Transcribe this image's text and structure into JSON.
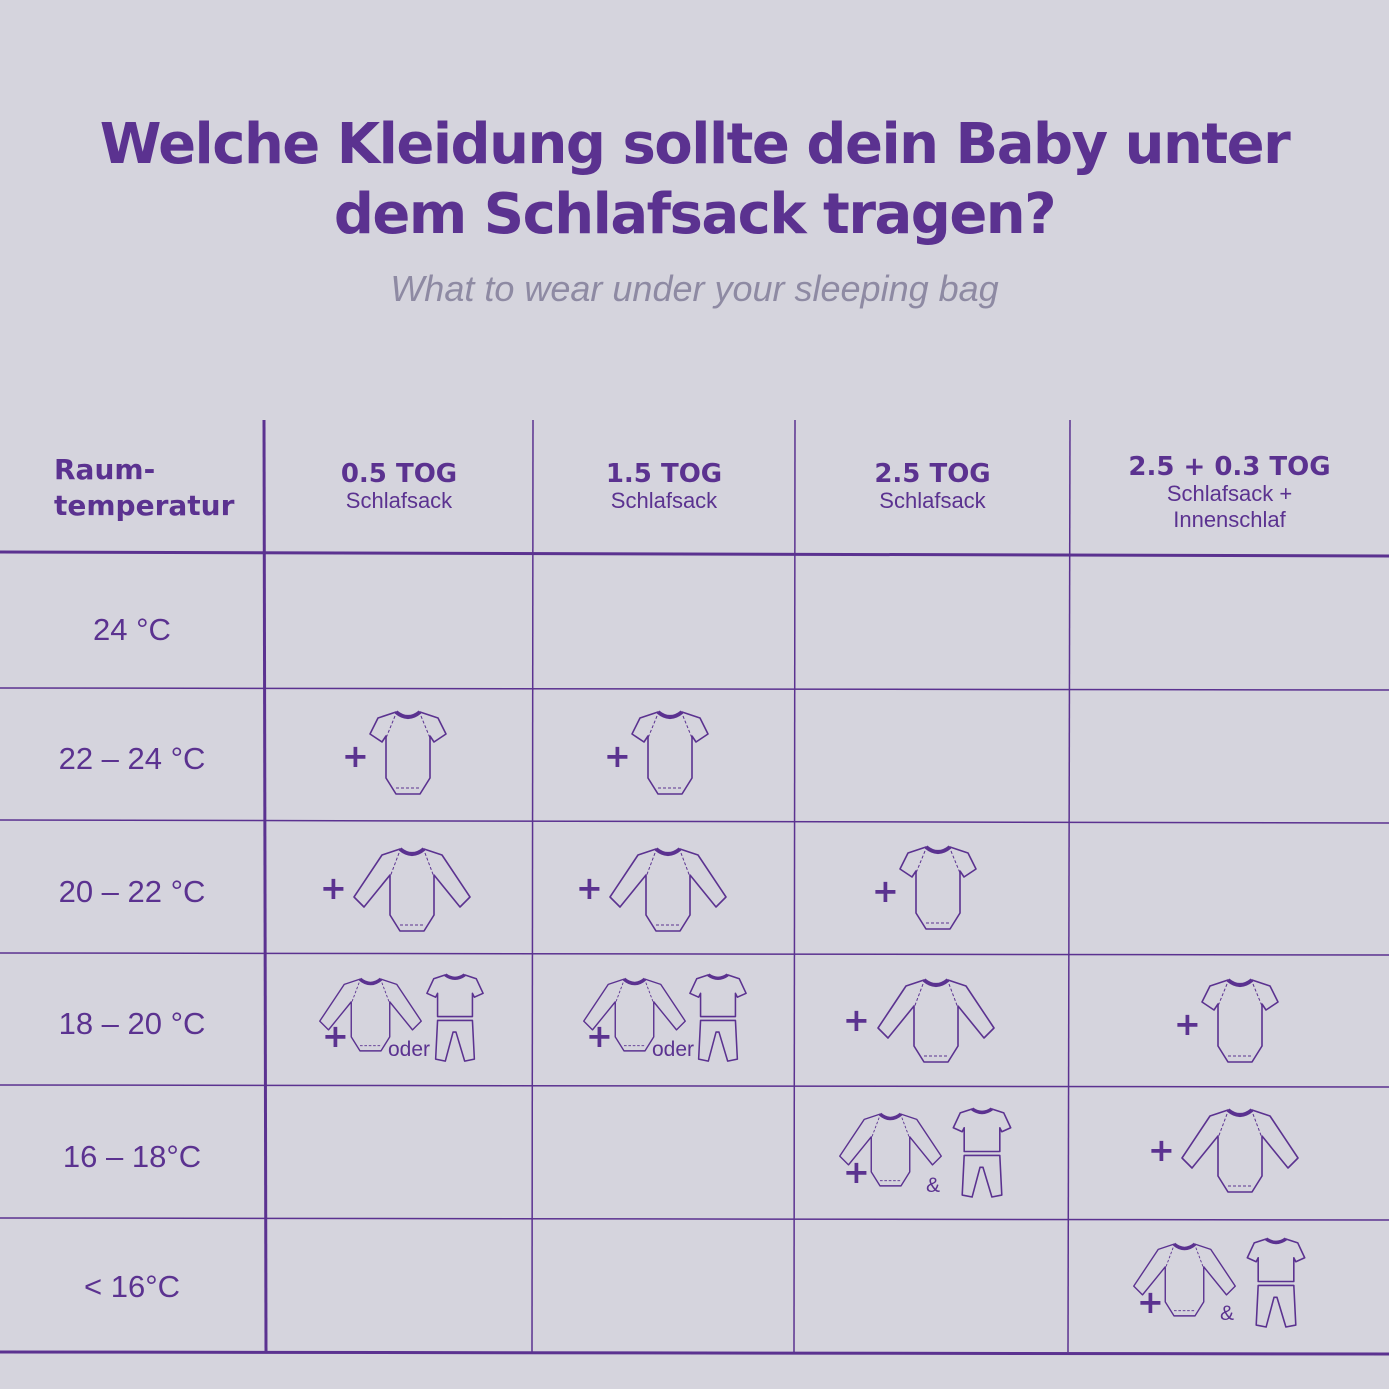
{
  "title_line1": "Welche Kleidung sollte dein Baby unter",
  "title_line2": "dem Schlafsack tragen?",
  "subtitle": "What to wear under your sleeping bag",
  "header": {
    "row_label_1": "Raum-",
    "row_label_2": "temperatur",
    "columns": [
      {
        "tog": "0.5 TOG",
        "line1": "Schlafsack",
        "line2": ""
      },
      {
        "tog": "1.5 TOG",
        "line1": "Schlafsack",
        "line2": ""
      },
      {
        "tog": "2.5 TOG",
        "line1": "Schlafsack",
        "line2": ""
      },
      {
        "tog": "2.5 + 0.3 TOG",
        "line1": "Schlafsack +",
        "line2": "Innenschlaf"
      }
    ]
  },
  "rows": [
    "24 °C",
    "22 – 24 °C",
    "20 – 22 °C",
    "18 – 20 °C",
    "16 – 18°C",
    "< 16°C"
  ],
  "symbols": {
    "plus": "+",
    "or": "oder",
    "and": "&"
  },
  "icons": {
    "short_sleeve_bodysuit": "short-sleeve-bodysuit-icon",
    "long_sleeve_bodysuit": "long-sleeve-bodysuit-icon",
    "pyjamas": "pyjamas-icon"
  },
  "colors": {
    "background": "#d5d4dd",
    "accent": "#5b3290",
    "subtitle": "#8e8aa3"
  }
}
